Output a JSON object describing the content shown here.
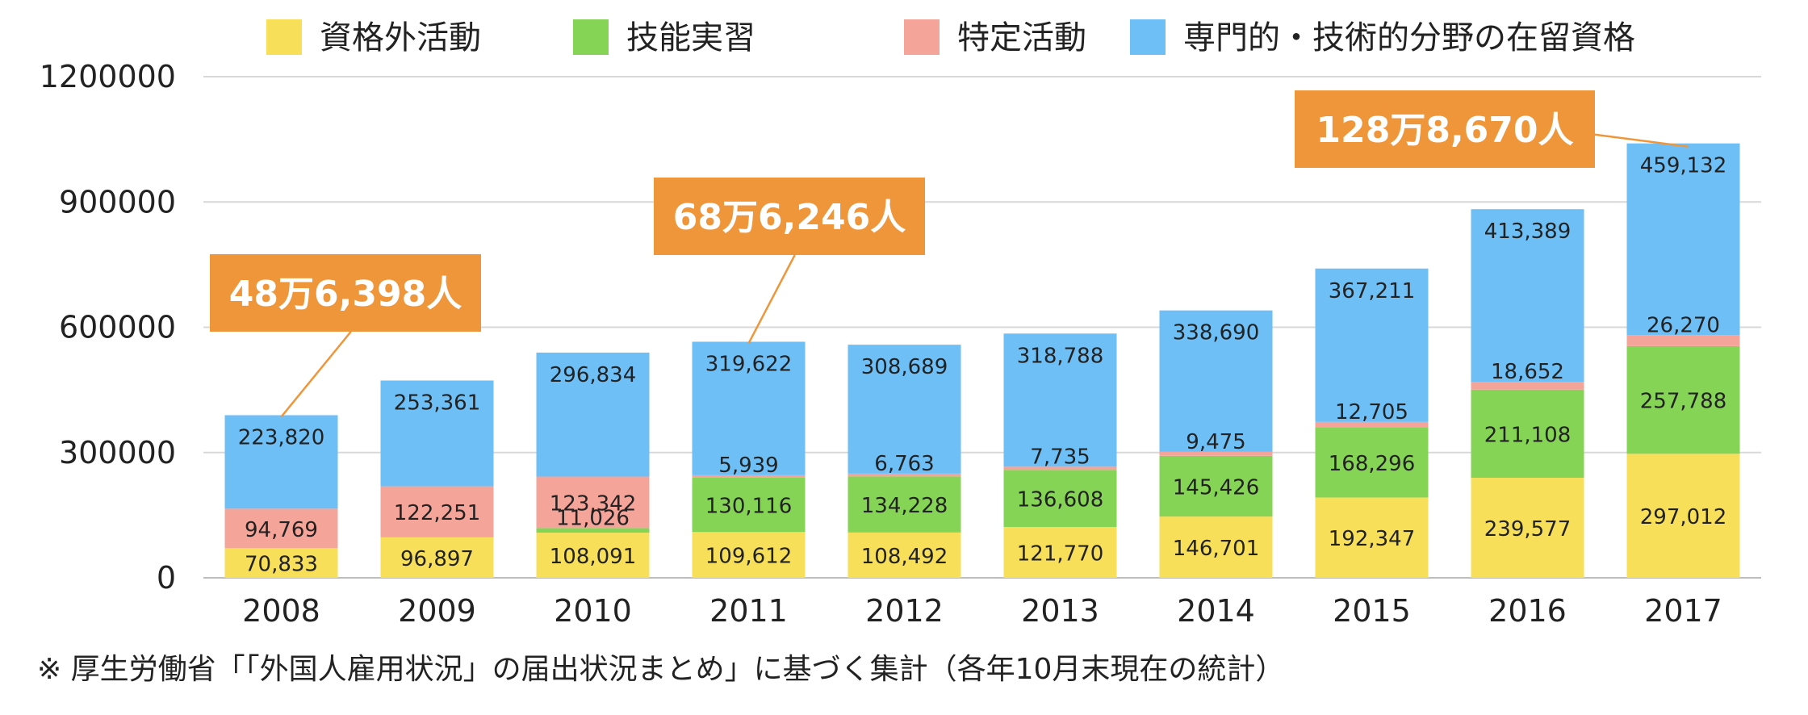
{
  "chart_data": {
    "type": "bar",
    "stacked": true,
    "categories": [
      "2008",
      "2009",
      "2010",
      "2011",
      "2012",
      "2013",
      "2014",
      "2015",
      "2016",
      "2017"
    ],
    "series": [
      {
        "name": "資格外活動",
        "color": "#f7df5a",
        "values": [
          70833,
          96897,
          108091,
          109612,
          108492,
          121770,
          146701,
          192347,
          239577,
          297012
        ],
        "labels": [
          "70,833",
          "96,897",
          "108,091",
          "109,612",
          "108,492",
          "121,770",
          "146,701",
          "192,347",
          "239,577",
          "297,012"
        ]
      },
      {
        "name": "技能実習",
        "color": "#86d456",
        "values": [
          0,
          0,
          11026,
          130116,
          134228,
          136608,
          145426,
          168296,
          211108,
          257788
        ],
        "labels": [
          "",
          "",
          "11,026",
          "130,116",
          "134,228",
          "136,608",
          "145,426",
          "168,296",
          "211,108",
          "257,788"
        ]
      },
      {
        "name": "特定活動",
        "color": "#f5a49a",
        "values": [
          94769,
          122251,
          123342,
          5939,
          6763,
          7735,
          9475,
          12705,
          18652,
          26270
        ],
        "labels": [
          "94,769",
          "122,251",
          "123,342",
          "5,939",
          "6,763",
          "7,735",
          "9,475",
          "12,705",
          "18,652",
          "26,270"
        ]
      },
      {
        "name": "専門的・技術的分野の在留資格",
        "color": "#6fbff7",
        "values": [
          223820,
          253361,
          296834,
          319622,
          308689,
          318788,
          338690,
          367211,
          413389,
          459132
        ],
        "labels": [
          "223,820",
          "253,361",
          "296,834",
          "319,622",
          "308,689",
          "318,788",
          "338,690",
          "367,211",
          "413,389",
          "459,132"
        ]
      }
    ],
    "ylim": [
      0,
      1200000
    ],
    "yticks": [
      "0",
      "300000",
      "600000",
      "900000",
      "1200000"
    ],
    "ytick_values": [
      0,
      300000,
      600000,
      900000,
      1200000
    ],
    "callouts": [
      {
        "text": "48万6,398人",
        "category": "2008"
      },
      {
        "text": "68万6,246人",
        "category": "2011"
      },
      {
        "text": "128万8,670人",
        "category": "2017"
      }
    ],
    "callout_color": "#f0963a",
    "gridline_color": "#d8d8d8",
    "footnote": "※ 厚生労働省「「外国人雇用状況」の届出状況まとめ」に基づく集計（各年10月末現在の統計）"
  }
}
